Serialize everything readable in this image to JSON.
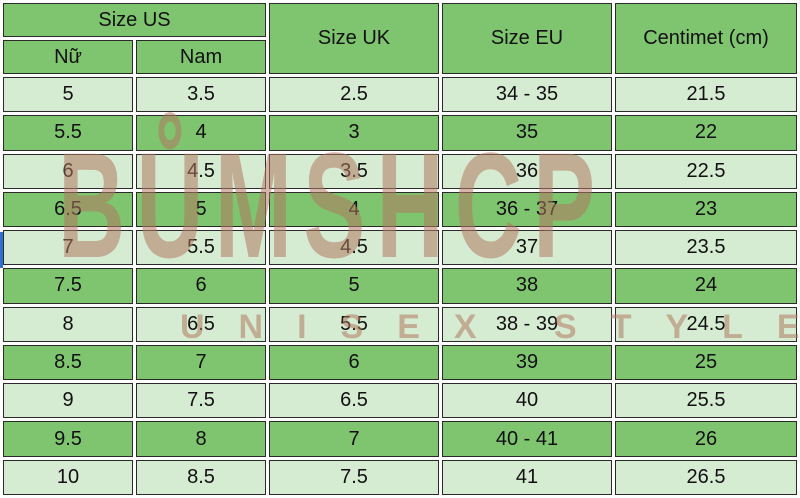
{
  "table": {
    "headers": {
      "size_us": "Size US",
      "women": "Nữ",
      "men": "Nam",
      "size_uk": "Size UK",
      "size_eu": "Size EU",
      "cm": "Centimet (cm)"
    },
    "rows": [
      {
        "women": "5",
        "men": "3.5",
        "uk": "2.5",
        "eu": "34 - 35",
        "cm": "21.5"
      },
      {
        "women": "5.5",
        "men": "4",
        "uk": "3",
        "eu": "35",
        "cm": "22"
      },
      {
        "women": "6",
        "men": "4.5",
        "uk": "3.5",
        "eu": "36",
        "cm": "22.5"
      },
      {
        "women": "6.5",
        "men": "5",
        "uk": "4",
        "eu": "36 - 37",
        "cm": "23"
      },
      {
        "women": "7",
        "men": "5.5",
        "uk": "4.5",
        "eu": "37",
        "cm": "23.5"
      },
      {
        "women": "7.5",
        "men": "6",
        "uk": "5",
        "eu": "38",
        "cm": "24"
      },
      {
        "women": "8",
        "men": "6.5",
        "uk": "5.5",
        "eu": "38 - 39",
        "cm": "24.5"
      },
      {
        "women": "8.5",
        "men": "7",
        "uk": "6",
        "eu": "39",
        "cm": "25"
      },
      {
        "women": "9",
        "men": "7.5",
        "uk": "6.5",
        "eu": "40",
        "cm": "25.5"
      },
      {
        "women": "9.5",
        "men": "8",
        "uk": "7",
        "eu": "40 - 41",
        "cm": "26"
      },
      {
        "women": "10",
        "men": "8.5",
        "uk": "7.5",
        "eu": "41",
        "cm": "26.5"
      }
    ]
  },
  "watermark": {
    "brand": "BŮMSHCP",
    "tagline": "UNISEX STYLE"
  },
  "colors": {
    "header_bg": "#7fc46f",
    "header_text": "#ffff00",
    "row_light": "#d6ecd2",
    "row_dark": "#7fc46f",
    "watermark": "#b07860"
  }
}
